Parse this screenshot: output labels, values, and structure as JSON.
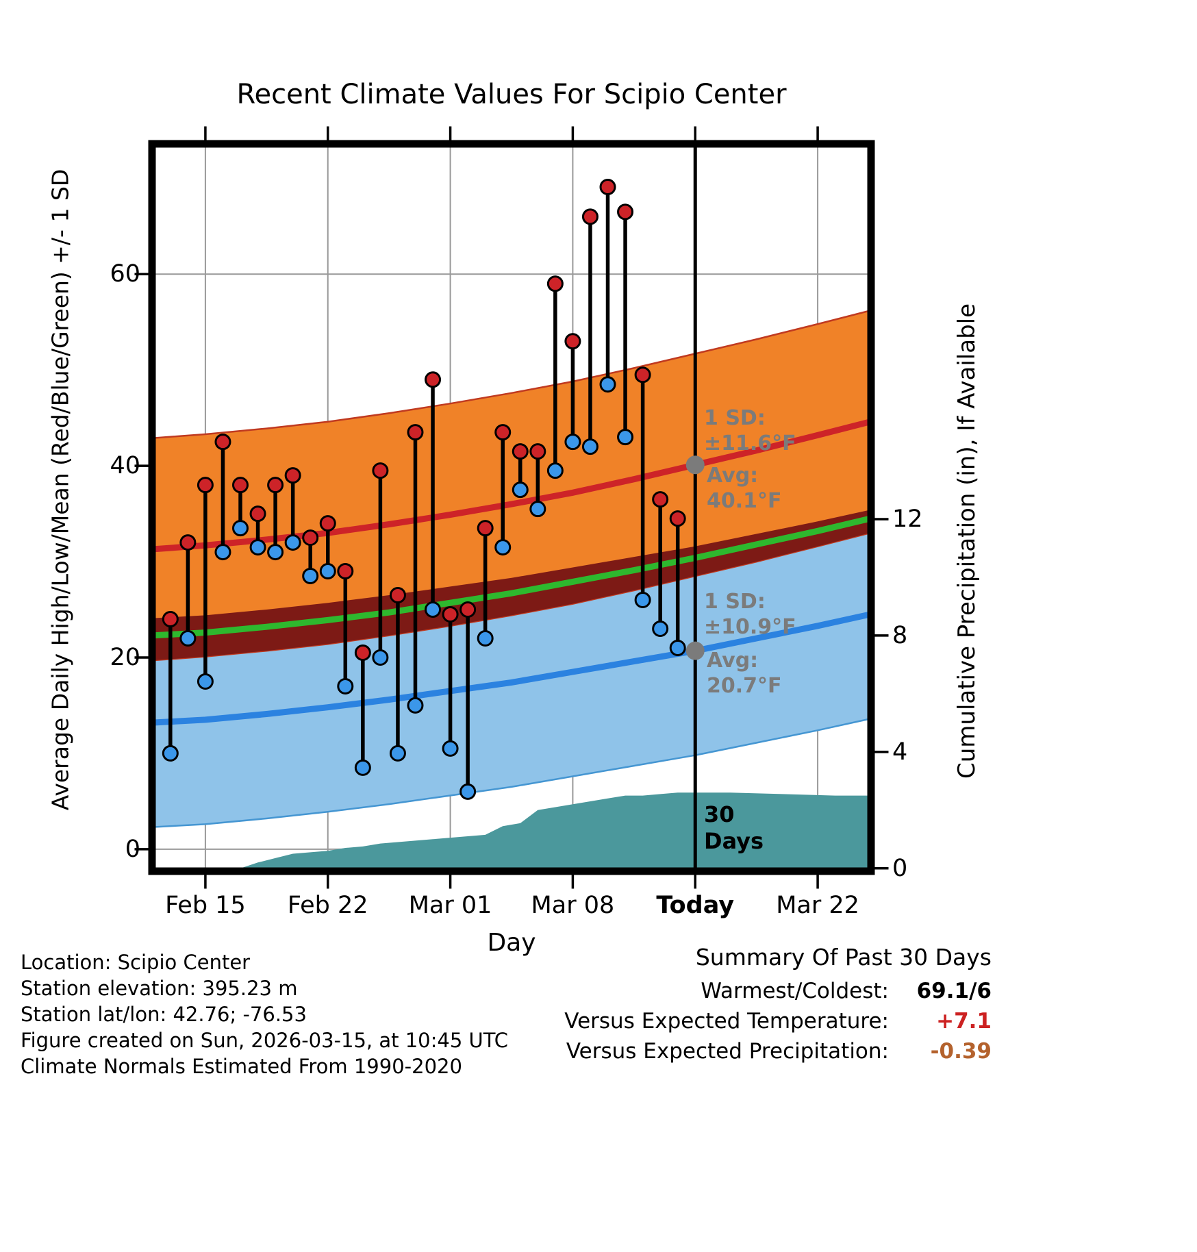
{
  "chart_data": {
    "type": "line",
    "title": "Recent Climate Values For Scipio Center",
    "xlabel": "Day",
    "ylabel": "Average Daily High/Low/Mean (Red/Blue/Green) +/- 1 SD",
    "ylabel_right": "Cumulative Precipitation (in), If Available",
    "grid": true,
    "x_ticks": [
      {
        "label": "Feb 15",
        "day": 0
      },
      {
        "label": "Feb 22",
        "day": 7
      },
      {
        "label": "Mar 01",
        "day": 14
      },
      {
        "label": "Mar 08",
        "day": 21
      },
      {
        "label": "Today",
        "day": 28,
        "bold": true
      },
      {
        "label": "Mar 22",
        "day": 35
      }
    ],
    "y_ticks": [
      0,
      20,
      40,
      60
    ],
    "y_ticks_right": [
      0,
      4,
      8,
      12
    ],
    "xlim_days": [
      -3.05,
      38.05
    ],
    "ylim": [
      -2.3,
      73.6
    ],
    "ylim_right": [
      -0.1,
      24.9
    ],
    "today_day": 28,
    "daily": {
      "dates": [
        "Feb 13",
        "Feb 14",
        "Feb 15",
        "Feb 16",
        "Feb 17",
        "Feb 18",
        "Feb 19",
        "Feb 20",
        "Feb 21",
        "Feb 22",
        "Feb 23",
        "Feb 24",
        "Feb 25",
        "Feb 26",
        "Feb 27",
        "Feb 28",
        "Mar 01",
        "Mar 02",
        "Mar 03",
        "Mar 04",
        "Mar 05",
        "Mar 06",
        "Mar 07",
        "Mar 08",
        "Mar 09",
        "Mar 10",
        "Mar 11",
        "Mar 12",
        "Mar 13",
        "Mar 14"
      ],
      "day": [
        -2,
        -1,
        0,
        1,
        2,
        3,
        4,
        5,
        6,
        7,
        8,
        9,
        10,
        11,
        12,
        13,
        14,
        15,
        16,
        17,
        18,
        19,
        20,
        21,
        22,
        23,
        24,
        25,
        26,
        27
      ],
      "high": [
        24,
        32,
        38,
        42.5,
        38,
        35,
        38,
        39,
        32.5,
        34,
        29,
        20.5,
        39.5,
        26.5,
        43.5,
        49,
        24.5,
        25,
        33.5,
        43.5,
        41.5,
        41.5,
        59,
        53,
        66,
        69.1,
        66.5,
        49.5,
        36.5,
        34.5
      ],
      "low": [
        10,
        22,
        17.5,
        31,
        33.5,
        31.5,
        31,
        32,
        28.5,
        29,
        17,
        8.5,
        20,
        10,
        15,
        25,
        10.5,
        6,
        22,
        31.5,
        37.5,
        35.5,
        39.5,
        42.5,
        42,
        48.5,
        43,
        26,
        23,
        21
      ]
    },
    "normals": {
      "day": [
        -3,
        0,
        3.5,
        7,
        10.5,
        14,
        17.5,
        21,
        24.5,
        28,
        31.5,
        35,
        38
      ],
      "high_avg": [
        31.3,
        31.7,
        32.3,
        33.0,
        33.9,
        34.9,
        36.0,
        37.2,
        38.6,
        40.1,
        41.6,
        43.2,
        44.6
      ],
      "low_avg": [
        13.2,
        13.5,
        14.1,
        14.8,
        15.6,
        16.5,
        17.4,
        18.5,
        19.6,
        20.7,
        22.0,
        23.3,
        24.5
      ],
      "mean_avg": [
        22.3,
        22.6,
        23.2,
        23.9,
        24.7,
        25.7,
        26.7,
        27.9,
        29.1,
        30.4,
        31.8,
        33.2,
        34.5
      ],
      "high_sd": 11.6,
      "low_sd": 10.9
    },
    "precip_cumulative": {
      "day": [
        2,
        3,
        4,
        5,
        6,
        7,
        8,
        9,
        10,
        11,
        12,
        13,
        14,
        15,
        16,
        17,
        18,
        19,
        20,
        21,
        22,
        23,
        24,
        25,
        26,
        27,
        28,
        30,
        33,
        36,
        38
      ],
      "inches": [
        0,
        0.2,
        0.35,
        0.5,
        0.55,
        0.6,
        0.7,
        0.75,
        0.85,
        0.9,
        0.95,
        1.0,
        1.05,
        1.1,
        1.15,
        1.45,
        1.55,
        2.0,
        2.1,
        2.2,
        2.3,
        2.4,
        2.5,
        2.5,
        2.55,
        2.6,
        2.6,
        2.6,
        2.55,
        2.5,
        2.5
      ]
    }
  },
  "annotations": {
    "high_sd": "1 SD:\n±11.6°F",
    "high_avg": "Avg:\n40.1°F",
    "low_sd": "1 SD:\n±10.9°F",
    "low_avg": "Avg:\n20.7°F",
    "window": "30\nDays"
  },
  "footer": {
    "lines": [
      "Location: Scipio Center",
      "Station elevation: 395.23 m",
      "Station lat/lon: 42.76; -76.53",
      "Figure created on Sun, 2026-03-15, at 10:45 UTC",
      "Climate Normals Estimated From 1990-2020"
    ]
  },
  "summary": {
    "title": "Summary Of Past 30 Days",
    "rows": [
      {
        "label": "Warmest/Coldest:",
        "value": "69.1/6",
        "color": "#000000"
      },
      {
        "label": "Versus Expected Temperature:",
        "value": "+7.1",
        "color": "#cc2222"
      },
      {
        "label": "Versus Expected Precipitation:",
        "value": "-0.39",
        "color": "#b4622d"
      }
    ]
  },
  "colors": {
    "high_band": "#f08228",
    "high_band_edge": "#c03a20",
    "high_line": "#cd2328",
    "overlap_band": "#7d1a15",
    "mean_line": "#2eb82e",
    "low_band": "#8fc3e9",
    "low_band_edge": "#4596d2",
    "low_line": "#2b82e0",
    "low_marker": "#3b97ea",
    "high_marker": "#cd2328",
    "precip_fill": "#4b989c",
    "today_marker": "#7b7b7b",
    "grid": "#999999",
    "annotation_gray": "#7b7b7b"
  }
}
